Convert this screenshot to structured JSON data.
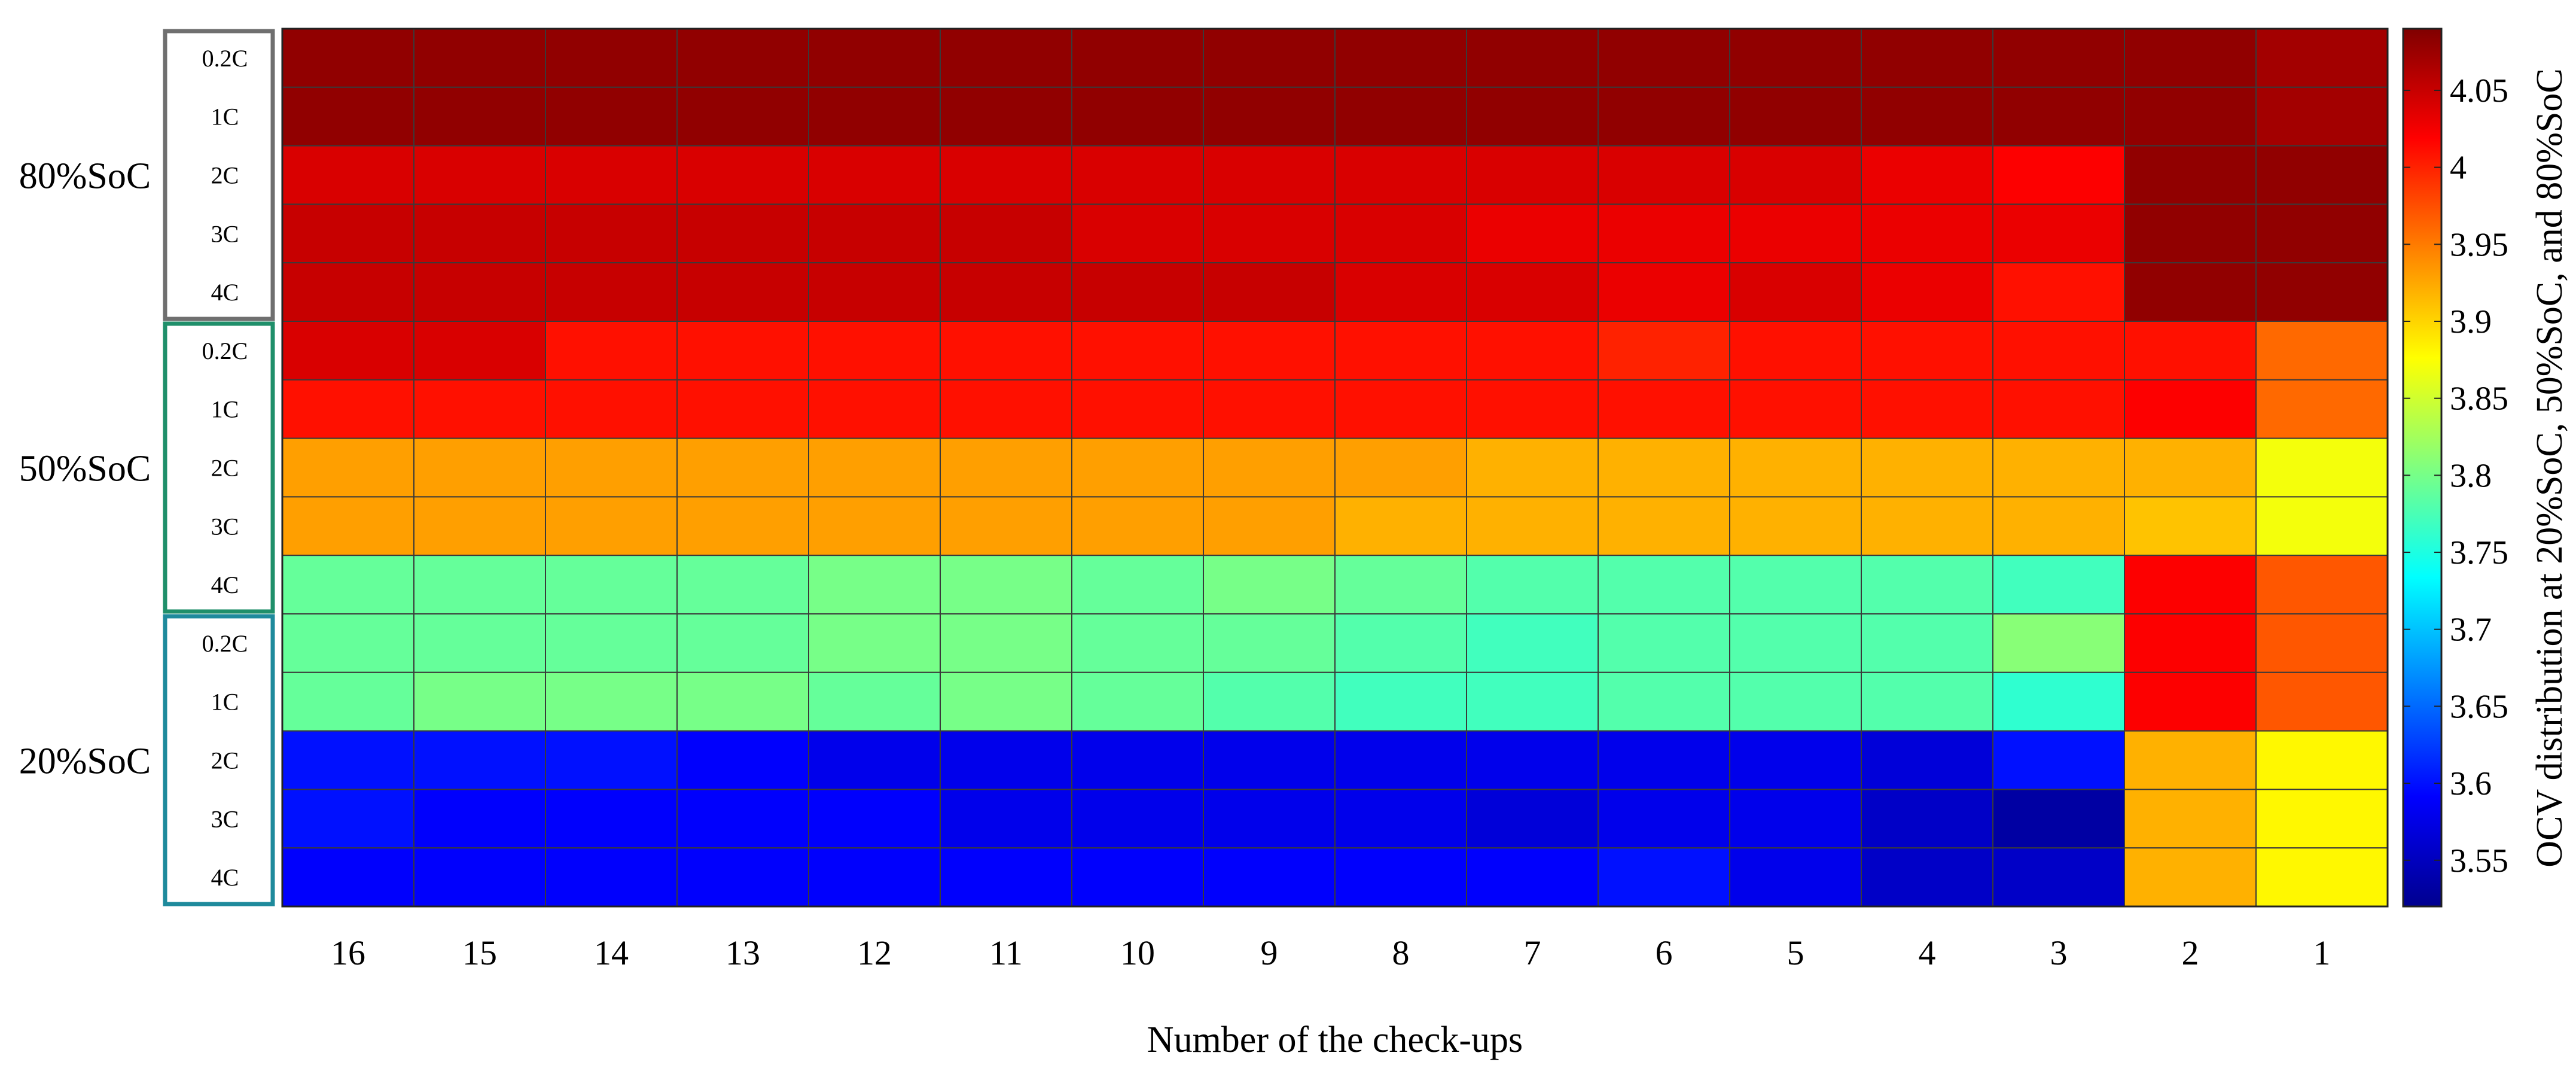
{
  "chart_data": {
    "type": "heatmap",
    "xlabel": "Number of the check-ups",
    "colorbar_label": "OCV distribution at 20%SoC, 50%SoC, and 80%SoC",
    "colormap": "jet",
    "clim": [
      3.52,
      4.09
    ],
    "colorbar_ticks": [
      "3.55",
      "3.6",
      "3.65",
      "3.7",
      "3.75",
      "3.8",
      "3.85",
      "3.9",
      "3.95",
      "4",
      "4.05"
    ],
    "x_categories": [
      "16",
      "15",
      "14",
      "13",
      "12",
      "11",
      "10",
      "9",
      "8",
      "7",
      "6",
      "5",
      "4",
      "3",
      "2",
      "1"
    ],
    "groups": [
      {
        "label": "80%SoC",
        "color": "#6f6f6f",
        "rows": [
          "0.2C",
          "1C",
          "2C",
          "3C",
          "4C"
        ]
      },
      {
        "label": "50%SoC",
        "color": "#1f8f6a",
        "rows": [
          "0.2C",
          "1C",
          "2C",
          "3C",
          "4C"
        ]
      },
      {
        "label": "20%SoC",
        "color": "#1e8a9c",
        "rows": [
          "0.2C",
          "1C",
          "2C",
          "3C",
          "4C"
        ]
      }
    ],
    "values": [
      [
        4.08,
        4.08,
        4.08,
        4.08,
        4.08,
        4.08,
        4.08,
        4.08,
        4.08,
        4.08,
        4.08,
        4.08,
        4.08,
        4.08,
        4.08,
        4.07
      ],
      [
        4.08,
        4.08,
        4.08,
        4.08,
        4.08,
        4.08,
        4.08,
        4.08,
        4.08,
        4.08,
        4.08,
        4.08,
        4.08,
        4.08,
        4.08,
        4.07
      ],
      [
        4.04,
        4.04,
        4.04,
        4.04,
        4.04,
        4.04,
        4.04,
        4.04,
        4.04,
        4.04,
        4.04,
        4.04,
        4.03,
        4.02,
        4.08,
        4.08
      ],
      [
        4.05,
        4.05,
        4.05,
        4.05,
        4.05,
        4.05,
        4.04,
        4.04,
        4.04,
        4.03,
        4.03,
        4.03,
        4.03,
        4.03,
        4.08,
        4.08
      ],
      [
        4.05,
        4.05,
        4.05,
        4.05,
        4.05,
        4.05,
        4.05,
        4.05,
        4.04,
        4.04,
        4.03,
        4.04,
        4.03,
        4.01,
        4.08,
        4.08
      ],
      [
        4.04,
        4.04,
        4.01,
        4.01,
        4.01,
        4.01,
        4.01,
        4.01,
        4.01,
        4.01,
        4.0,
        4.01,
        4.01,
        4.01,
        4.01,
        3.96
      ],
      [
        4.01,
        4.01,
        4.01,
        4.01,
        4.01,
        4.01,
        4.01,
        4.01,
        4.01,
        4.01,
        4.01,
        4.01,
        4.01,
        4.01,
        4.02,
        3.96
      ],
      [
        3.93,
        3.93,
        3.93,
        3.93,
        3.93,
        3.93,
        3.93,
        3.93,
        3.93,
        3.92,
        3.92,
        3.92,
        3.92,
        3.92,
        3.92,
        3.87
      ],
      [
        3.93,
        3.93,
        3.93,
        3.93,
        3.93,
        3.93,
        3.93,
        3.93,
        3.92,
        3.92,
        3.92,
        3.92,
        3.92,
        3.92,
        3.91,
        3.87
      ],
      [
        3.79,
        3.79,
        3.79,
        3.79,
        3.8,
        3.8,
        3.79,
        3.8,
        3.79,
        3.78,
        3.78,
        3.78,
        3.78,
        3.77,
        4.02,
        3.97
      ],
      [
        3.79,
        3.79,
        3.79,
        3.79,
        3.8,
        3.8,
        3.79,
        3.79,
        3.78,
        3.77,
        3.78,
        3.78,
        3.78,
        3.81,
        4.02,
        3.97
      ],
      [
        3.79,
        3.8,
        3.8,
        3.8,
        3.79,
        3.8,
        3.79,
        3.78,
        3.77,
        3.77,
        3.78,
        3.78,
        3.78,
        3.76,
        4.02,
        3.97
      ],
      [
        3.6,
        3.6,
        3.6,
        3.59,
        3.58,
        3.58,
        3.58,
        3.58,
        3.58,
        3.58,
        3.58,
        3.58,
        3.57,
        3.6,
        3.92,
        3.88
      ],
      [
        3.6,
        3.59,
        3.59,
        3.59,
        3.59,
        3.58,
        3.58,
        3.58,
        3.58,
        3.57,
        3.58,
        3.58,
        3.56,
        3.54,
        3.92,
        3.88
      ],
      [
        3.59,
        3.59,
        3.59,
        3.59,
        3.59,
        3.59,
        3.59,
        3.59,
        3.59,
        3.59,
        3.6,
        3.58,
        3.56,
        3.56,
        3.92,
        3.88
      ]
    ]
  }
}
